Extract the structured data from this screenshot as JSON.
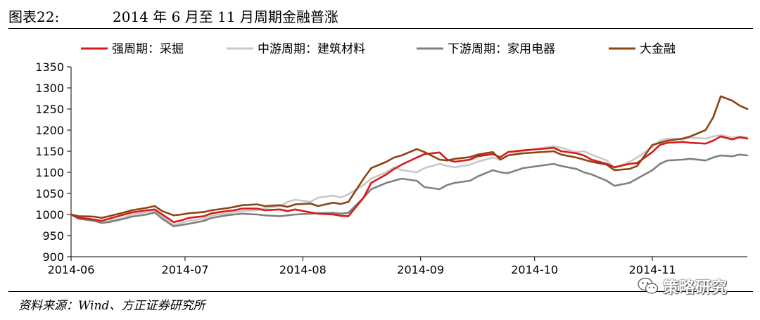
{
  "figure": {
    "number": "图表22:",
    "title": "2014 年 6 月至 11 月周期金融普涨",
    "source": "资料来源：Wind、方正证券研究所",
    "watermark": "策略研究",
    "watermark_icon": "wechat-icon"
  },
  "chart_data": {
    "type": "line",
    "title": "",
    "xlabel": "",
    "ylabel": "",
    "ylim": [
      900,
      1350
    ],
    "yticks": [
      900,
      950,
      1000,
      1050,
      1100,
      1150,
      1200,
      1250,
      1300,
      1350
    ],
    "xlim": [
      "2014-06-03",
      "2014-11-28"
    ],
    "xticks": [
      {
        "date": "2014-06-03",
        "label": "2014-06"
      },
      {
        "date": "2014-07-03",
        "label": "2014-07"
      },
      {
        "date": "2014-08-03",
        "label": "2014-08"
      },
      {
        "date": "2014-09-03",
        "label": "2014-09"
      },
      {
        "date": "2014-10-03",
        "label": "2014-10"
      },
      {
        "date": "2014-11-03",
        "label": "2014-11"
      }
    ],
    "grid": false,
    "legend_position": "top",
    "series": [
      {
        "name": "强周期：采掘",
        "color": "#d7191c",
        "points": [
          [
            "2014-06-03",
            1000
          ],
          [
            "2014-06-05",
            992
          ],
          [
            "2014-06-09",
            988
          ],
          [
            "2014-06-11",
            985
          ],
          [
            "2014-06-13",
            990
          ],
          [
            "2014-06-17",
            1000
          ],
          [
            "2014-06-19",
            1005
          ],
          [
            "2014-06-23",
            1010
          ],
          [
            "2014-06-25",
            1012
          ],
          [
            "2014-06-27",
            1000
          ],
          [
            "2014-06-30",
            982
          ],
          [
            "2014-07-02",
            986
          ],
          [
            "2014-07-04",
            992
          ],
          [
            "2014-07-08",
            996
          ],
          [
            "2014-07-10",
            1003
          ],
          [
            "2014-07-14",
            1008
          ],
          [
            "2014-07-16",
            1010
          ],
          [
            "2014-07-18",
            1014
          ],
          [
            "2014-07-22",
            1014
          ],
          [
            "2014-07-24",
            1010
          ],
          [
            "2014-07-28",
            1012
          ],
          [
            "2014-07-30",
            1008
          ],
          [
            "2014-08-01",
            1012
          ],
          [
            "2014-08-05",
            1005
          ],
          [
            "2014-08-07",
            1002
          ],
          [
            "2014-08-11",
            1000
          ],
          [
            "2014-08-13",
            997
          ],
          [
            "2014-08-15",
            996
          ],
          [
            "2014-08-19",
            1040
          ],
          [
            "2014-08-21",
            1075
          ],
          [
            "2014-08-25",
            1095
          ],
          [
            "2014-08-27",
            1108
          ],
          [
            "2014-08-29",
            1118
          ],
          [
            "2014-09-02",
            1135
          ],
          [
            "2014-09-04",
            1143
          ],
          [
            "2014-09-08",
            1147
          ],
          [
            "2014-09-10",
            1130
          ],
          [
            "2014-09-12",
            1125
          ],
          [
            "2014-09-16",
            1130
          ],
          [
            "2014-09-18",
            1138
          ],
          [
            "2014-09-22",
            1143
          ],
          [
            "2014-09-24",
            1136
          ],
          [
            "2014-09-26",
            1148
          ],
          [
            "2014-09-30",
            1152
          ],
          [
            "2014-10-08",
            1158
          ],
          [
            "2014-10-10",
            1150
          ],
          [
            "2014-10-14",
            1145
          ],
          [
            "2014-10-16",
            1140
          ],
          [
            "2014-10-18",
            1130
          ],
          [
            "2014-10-22",
            1120
          ],
          [
            "2014-10-24",
            1112
          ],
          [
            "2014-10-28",
            1120
          ],
          [
            "2014-10-30",
            1122
          ],
          [
            "2014-11-03",
            1148
          ],
          [
            "2014-11-05",
            1165
          ],
          [
            "2014-11-07",
            1170
          ],
          [
            "2014-11-11",
            1172
          ],
          [
            "2014-11-13",
            1170
          ],
          [
            "2014-11-17",
            1168
          ],
          [
            "2014-11-19",
            1175
          ],
          [
            "2014-11-21",
            1185
          ],
          [
            "2014-11-24",
            1178
          ],
          [
            "2014-11-26",
            1183
          ],
          [
            "2014-11-28",
            1180
          ]
        ]
      },
      {
        "name": "中游周期：建筑材料",
        "color": "#c8c8c8",
        "points": [
          [
            "2014-06-03",
            1000
          ],
          [
            "2014-06-05",
            995
          ],
          [
            "2014-06-09",
            988
          ],
          [
            "2014-06-11",
            980
          ],
          [
            "2014-06-13",
            985
          ],
          [
            "2014-06-17",
            992
          ],
          [
            "2014-06-19",
            1000
          ],
          [
            "2014-06-23",
            1005
          ],
          [
            "2014-06-25",
            1010
          ],
          [
            "2014-06-27",
            995
          ],
          [
            "2014-06-30",
            975
          ],
          [
            "2014-07-02",
            980
          ],
          [
            "2014-07-04",
            985
          ],
          [
            "2014-07-08",
            990
          ],
          [
            "2014-07-10",
            998
          ],
          [
            "2014-07-14",
            1002
          ],
          [
            "2014-07-16",
            1005
          ],
          [
            "2014-07-18",
            1008
          ],
          [
            "2014-07-22",
            1010
          ],
          [
            "2014-07-24",
            1015
          ],
          [
            "2014-07-28",
            1020
          ],
          [
            "2014-07-30",
            1030
          ],
          [
            "2014-08-01",
            1035
          ],
          [
            "2014-08-05",
            1030
          ],
          [
            "2014-08-07",
            1040
          ],
          [
            "2014-08-11",
            1045
          ],
          [
            "2014-08-13",
            1040
          ],
          [
            "2014-08-15",
            1048
          ],
          [
            "2014-08-19",
            1070
          ],
          [
            "2014-08-21",
            1085
          ],
          [
            "2014-08-25",
            1100
          ],
          [
            "2014-08-27",
            1112
          ],
          [
            "2014-08-29",
            1105
          ],
          [
            "2014-09-02",
            1100
          ],
          [
            "2014-09-04",
            1110
          ],
          [
            "2014-09-08",
            1120
          ],
          [
            "2014-09-10",
            1115
          ],
          [
            "2014-09-12",
            1112
          ],
          [
            "2014-09-16",
            1118
          ],
          [
            "2014-09-18",
            1125
          ],
          [
            "2014-09-22",
            1135
          ],
          [
            "2014-09-24",
            1130
          ],
          [
            "2014-09-26",
            1140
          ],
          [
            "2014-09-30",
            1150
          ],
          [
            "2014-10-08",
            1162
          ],
          [
            "2014-10-10",
            1158
          ],
          [
            "2014-10-14",
            1148
          ],
          [
            "2014-10-16",
            1150
          ],
          [
            "2014-10-18",
            1142
          ],
          [
            "2014-10-22",
            1128
          ],
          [
            "2014-10-24",
            1110
          ],
          [
            "2014-10-28",
            1125
          ],
          [
            "2014-10-30",
            1135
          ],
          [
            "2014-11-03",
            1160
          ],
          [
            "2014-11-05",
            1175
          ],
          [
            "2014-11-07",
            1180
          ],
          [
            "2014-11-11",
            1178
          ],
          [
            "2014-11-13",
            1182
          ],
          [
            "2014-11-17",
            1180
          ],
          [
            "2014-11-19",
            1185
          ],
          [
            "2014-11-21",
            1188
          ],
          [
            "2014-11-24",
            1182
          ],
          [
            "2014-11-26",
            1185
          ],
          [
            "2014-11-28",
            1183
          ]
        ]
      },
      {
        "name": "下游周期：家用电器",
        "color": "#808080",
        "points": [
          [
            "2014-06-03",
            1000
          ],
          [
            "2014-06-05",
            990
          ],
          [
            "2014-06-09",
            985
          ],
          [
            "2014-06-11",
            980
          ],
          [
            "2014-06-13",
            982
          ],
          [
            "2014-06-17",
            990
          ],
          [
            "2014-06-19",
            995
          ],
          [
            "2014-06-23",
            1000
          ],
          [
            "2014-06-25",
            1005
          ],
          [
            "2014-06-27",
            990
          ],
          [
            "2014-06-30",
            972
          ],
          [
            "2014-07-02",
            975
          ],
          [
            "2014-07-04",
            978
          ],
          [
            "2014-07-08",
            985
          ],
          [
            "2014-07-10",
            992
          ],
          [
            "2014-07-14",
            998
          ],
          [
            "2014-07-16",
            1000
          ],
          [
            "2014-07-18",
            1002
          ],
          [
            "2014-07-22",
            1000
          ],
          [
            "2014-07-24",
            998
          ],
          [
            "2014-07-28",
            996
          ],
          [
            "2014-07-30",
            998
          ],
          [
            "2014-08-01",
            1000
          ],
          [
            "2014-08-05",
            1002
          ],
          [
            "2014-08-07",
            1003
          ],
          [
            "2014-08-11",
            1004
          ],
          [
            "2014-08-13",
            1002
          ],
          [
            "2014-08-15",
            1004
          ],
          [
            "2014-08-19",
            1040
          ],
          [
            "2014-08-21",
            1060
          ],
          [
            "2014-08-25",
            1075
          ],
          [
            "2014-08-27",
            1080
          ],
          [
            "2014-08-29",
            1085
          ],
          [
            "2014-09-02",
            1080
          ],
          [
            "2014-09-04",
            1065
          ],
          [
            "2014-09-08",
            1060
          ],
          [
            "2014-09-10",
            1070
          ],
          [
            "2014-09-12",
            1075
          ],
          [
            "2014-09-16",
            1080
          ],
          [
            "2014-09-18",
            1090
          ],
          [
            "2014-09-22",
            1105
          ],
          [
            "2014-09-24",
            1100
          ],
          [
            "2014-09-26",
            1098
          ],
          [
            "2014-09-30",
            1110
          ],
          [
            "2014-10-08",
            1120
          ],
          [
            "2014-10-10",
            1115
          ],
          [
            "2014-10-14",
            1108
          ],
          [
            "2014-10-16",
            1100
          ],
          [
            "2014-10-18",
            1095
          ],
          [
            "2014-10-22",
            1080
          ],
          [
            "2014-10-24",
            1068
          ],
          [
            "2014-10-28",
            1075
          ],
          [
            "2014-10-30",
            1085
          ],
          [
            "2014-11-03",
            1105
          ],
          [
            "2014-11-05",
            1120
          ],
          [
            "2014-11-07",
            1128
          ],
          [
            "2014-11-11",
            1130
          ],
          [
            "2014-11-13",
            1132
          ],
          [
            "2014-11-17",
            1128
          ],
          [
            "2014-11-19",
            1135
          ],
          [
            "2014-11-21",
            1140
          ],
          [
            "2014-11-24",
            1138
          ],
          [
            "2014-11-26",
            1142
          ],
          [
            "2014-11-28",
            1140
          ]
        ]
      },
      {
        "name": "大金融",
        "color": "#8b4513",
        "points": [
          [
            "2014-06-03",
            1000
          ],
          [
            "2014-06-05",
            996
          ],
          [
            "2014-06-09",
            995
          ],
          [
            "2014-06-11",
            992
          ],
          [
            "2014-06-13",
            996
          ],
          [
            "2014-06-17",
            1005
          ],
          [
            "2014-06-19",
            1010
          ],
          [
            "2014-06-23",
            1016
          ],
          [
            "2014-06-25",
            1020
          ],
          [
            "2014-06-27",
            1008
          ],
          [
            "2014-06-30",
            998
          ],
          [
            "2014-07-02",
            1000
          ],
          [
            "2014-07-04",
            1003
          ],
          [
            "2014-07-08",
            1006
          ],
          [
            "2014-07-10",
            1010
          ],
          [
            "2014-07-14",
            1015
          ],
          [
            "2014-07-16",
            1018
          ],
          [
            "2014-07-18",
            1022
          ],
          [
            "2014-07-22",
            1024
          ],
          [
            "2014-07-24",
            1020
          ],
          [
            "2014-07-28",
            1022
          ],
          [
            "2014-07-30",
            1018
          ],
          [
            "2014-08-01",
            1024
          ],
          [
            "2014-08-05",
            1026
          ],
          [
            "2014-08-07",
            1020
          ],
          [
            "2014-08-11",
            1028
          ],
          [
            "2014-08-13",
            1025
          ],
          [
            "2014-08-15",
            1030
          ],
          [
            "2014-08-19",
            1085
          ],
          [
            "2014-08-21",
            1110
          ],
          [
            "2014-08-25",
            1125
          ],
          [
            "2014-08-27",
            1135
          ],
          [
            "2014-08-29",
            1140
          ],
          [
            "2014-09-02",
            1155
          ],
          [
            "2014-09-04",
            1148
          ],
          [
            "2014-09-08",
            1130
          ],
          [
            "2014-09-10",
            1128
          ],
          [
            "2014-09-12",
            1132
          ],
          [
            "2014-09-16",
            1136
          ],
          [
            "2014-09-18",
            1142
          ],
          [
            "2014-09-22",
            1148
          ],
          [
            "2014-09-24",
            1130
          ],
          [
            "2014-09-26",
            1140
          ],
          [
            "2014-09-30",
            1145
          ],
          [
            "2014-10-08",
            1150
          ],
          [
            "2014-10-10",
            1142
          ],
          [
            "2014-10-14",
            1135
          ],
          [
            "2014-10-16",
            1130
          ],
          [
            "2014-10-18",
            1125
          ],
          [
            "2014-10-22",
            1118
          ],
          [
            "2014-10-24",
            1105
          ],
          [
            "2014-10-28",
            1108
          ],
          [
            "2014-10-30",
            1115
          ],
          [
            "2014-11-03",
            1165
          ],
          [
            "2014-11-05",
            1170
          ],
          [
            "2014-11-07",
            1175
          ],
          [
            "2014-11-11",
            1180
          ],
          [
            "2014-11-13",
            1185
          ],
          [
            "2014-11-17",
            1200
          ],
          [
            "2014-11-19",
            1230
          ],
          [
            "2014-11-21",
            1280
          ],
          [
            "2014-11-24",
            1270
          ],
          [
            "2014-11-26",
            1258
          ],
          [
            "2014-11-28",
            1250
          ]
        ]
      }
    ]
  }
}
